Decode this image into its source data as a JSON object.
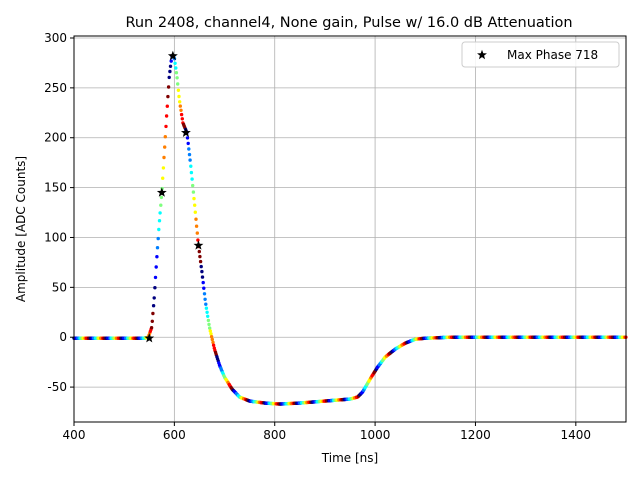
{
  "chart_data": {
    "type": "scatter",
    "title": "Run 2408, channel4, None gain, Pulse w/ 16.0 dB Attenuation",
    "xlabel": "Time [ns]",
    "ylabel": "Amplitude [ADC Counts]",
    "xlim": [
      400,
      1500
    ],
    "ylim": [
      -85,
      302
    ],
    "x_ticks": [
      400,
      600,
      800,
      1000,
      1200,
      1400
    ],
    "y_ticks": [
      -50,
      0,
      50,
      100,
      150,
      200,
      250,
      300
    ],
    "grid": true,
    "legend": {
      "location": "top-right",
      "entries": [
        {
          "marker": "star",
          "label": "Max Phase 718"
        }
      ]
    },
    "series": [
      {
        "kind": "dense colored dots (jet colormap)",
        "profile": [
          [
            400,
            -1
          ],
          [
            540,
            -1
          ],
          [
            548,
            0
          ],
          [
            555,
            10
          ],
          [
            560,
            40
          ],
          [
            565,
            80
          ],
          [
            570,
            115
          ],
          [
            575,
            145
          ],
          [
            580,
            185
          ],
          [
            585,
            225
          ],
          [
            590,
            262
          ],
          [
            595,
            282
          ],
          [
            600,
            280
          ],
          [
            605,
            262
          ],
          [
            610,
            238
          ],
          [
            617,
            215
          ],
          [
            625,
            205
          ],
          [
            632,
            175
          ],
          [
            640,
            135
          ],
          [
            648,
            92
          ],
          [
            655,
            65
          ],
          [
            662,
            35
          ],
          [
            670,
            10
          ],
          [
            680,
            -12
          ],
          [
            690,
            -28
          ],
          [
            700,
            -40
          ],
          [
            715,
            -52
          ],
          [
            730,
            -60
          ],
          [
            750,
            -64
          ],
          [
            780,
            -66
          ],
          [
            810,
            -67
          ],
          [
            850,
            -66
          ],
          [
            900,
            -64
          ],
          [
            950,
            -62
          ],
          [
            965,
            -60
          ],
          [
            975,
            -55
          ],
          [
            990,
            -42
          ],
          [
            1005,
            -30
          ],
          [
            1020,
            -20
          ],
          [
            1040,
            -12
          ],
          [
            1060,
            -6
          ],
          [
            1080,
            -2
          ],
          [
            1100,
            -1
          ],
          [
            1150,
            0
          ],
          [
            1200,
            0
          ],
          [
            1300,
            0
          ],
          [
            1400,
            0
          ],
          [
            1500,
            0
          ]
        ]
      },
      {
        "name": "Max Phase 718",
        "kind": "star markers",
        "points": [
          [
            550,
            -1
          ],
          [
            575,
            145
          ],
          [
            597,
            282
          ],
          [
            623,
            205
          ],
          [
            648,
            92
          ]
        ]
      }
    ],
    "colormap": [
      "#00007f",
      "#0000ff",
      "#007fff",
      "#00ffff",
      "#7fff7f",
      "#ffff00",
      "#ff7f00",
      "#ff0000",
      "#7f0000"
    ]
  }
}
